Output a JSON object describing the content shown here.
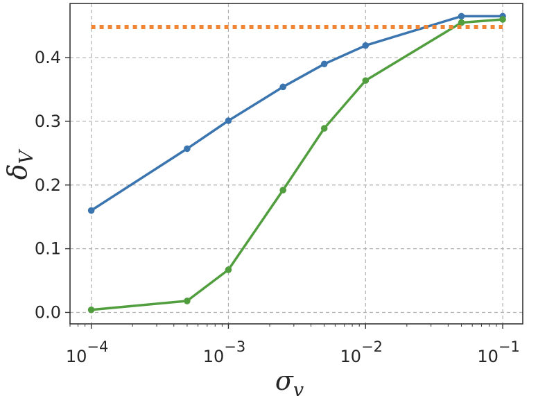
{
  "chart_data": {
    "type": "line",
    "x_scale": "log",
    "xlim": [
      7e-05,
      0.14
    ],
    "ylim": [
      -0.018,
      0.485
    ],
    "grid": true,
    "xlabel": {
      "base": "σ",
      "sub": "v"
    },
    "ylabel": {
      "base": "δ",
      "sub": "V"
    },
    "x_ticks": [
      {
        "value": 0.0001,
        "base": "10",
        "exp": "−4"
      },
      {
        "value": 0.001,
        "base": "10",
        "exp": "−3"
      },
      {
        "value": 0.01,
        "base": "10",
        "exp": "−2"
      },
      {
        "value": 0.1,
        "base": "10",
        "exp": "−1"
      }
    ],
    "y_ticks": [
      {
        "value": 0.0,
        "label": "0.0"
      },
      {
        "value": 0.1,
        "label": "0.1"
      },
      {
        "value": 0.2,
        "label": "0.2"
      },
      {
        "value": 0.3,
        "label": "0.3"
      },
      {
        "value": 0.4,
        "label": "0.4"
      }
    ],
    "series": [
      {
        "color": "#3b75af",
        "style": "solid-markers",
        "x": [
          0.0001,
          0.0005,
          0.001,
          0.0025,
          0.005,
          0.01,
          0.05,
          0.1
        ],
        "y": [
          0.16,
          0.257,
          0.301,
          0.354,
          0.39,
          0.419,
          0.465,
          0.465
        ]
      },
      {
        "color": "#519e3e",
        "style": "solid-markers",
        "x": [
          0.0001,
          0.0005,
          0.001,
          0.0025,
          0.005,
          0.01,
          0.05,
          0.1
        ],
        "y": [
          0.004,
          0.018,
          0.067,
          0.192,
          0.289,
          0.364,
          0.455,
          0.46
        ]
      },
      {
        "color": "#ef8636",
        "style": "dotted",
        "x": [
          0.0001,
          0.1
        ],
        "y": [
          0.448,
          0.448
        ]
      }
    ]
  }
}
